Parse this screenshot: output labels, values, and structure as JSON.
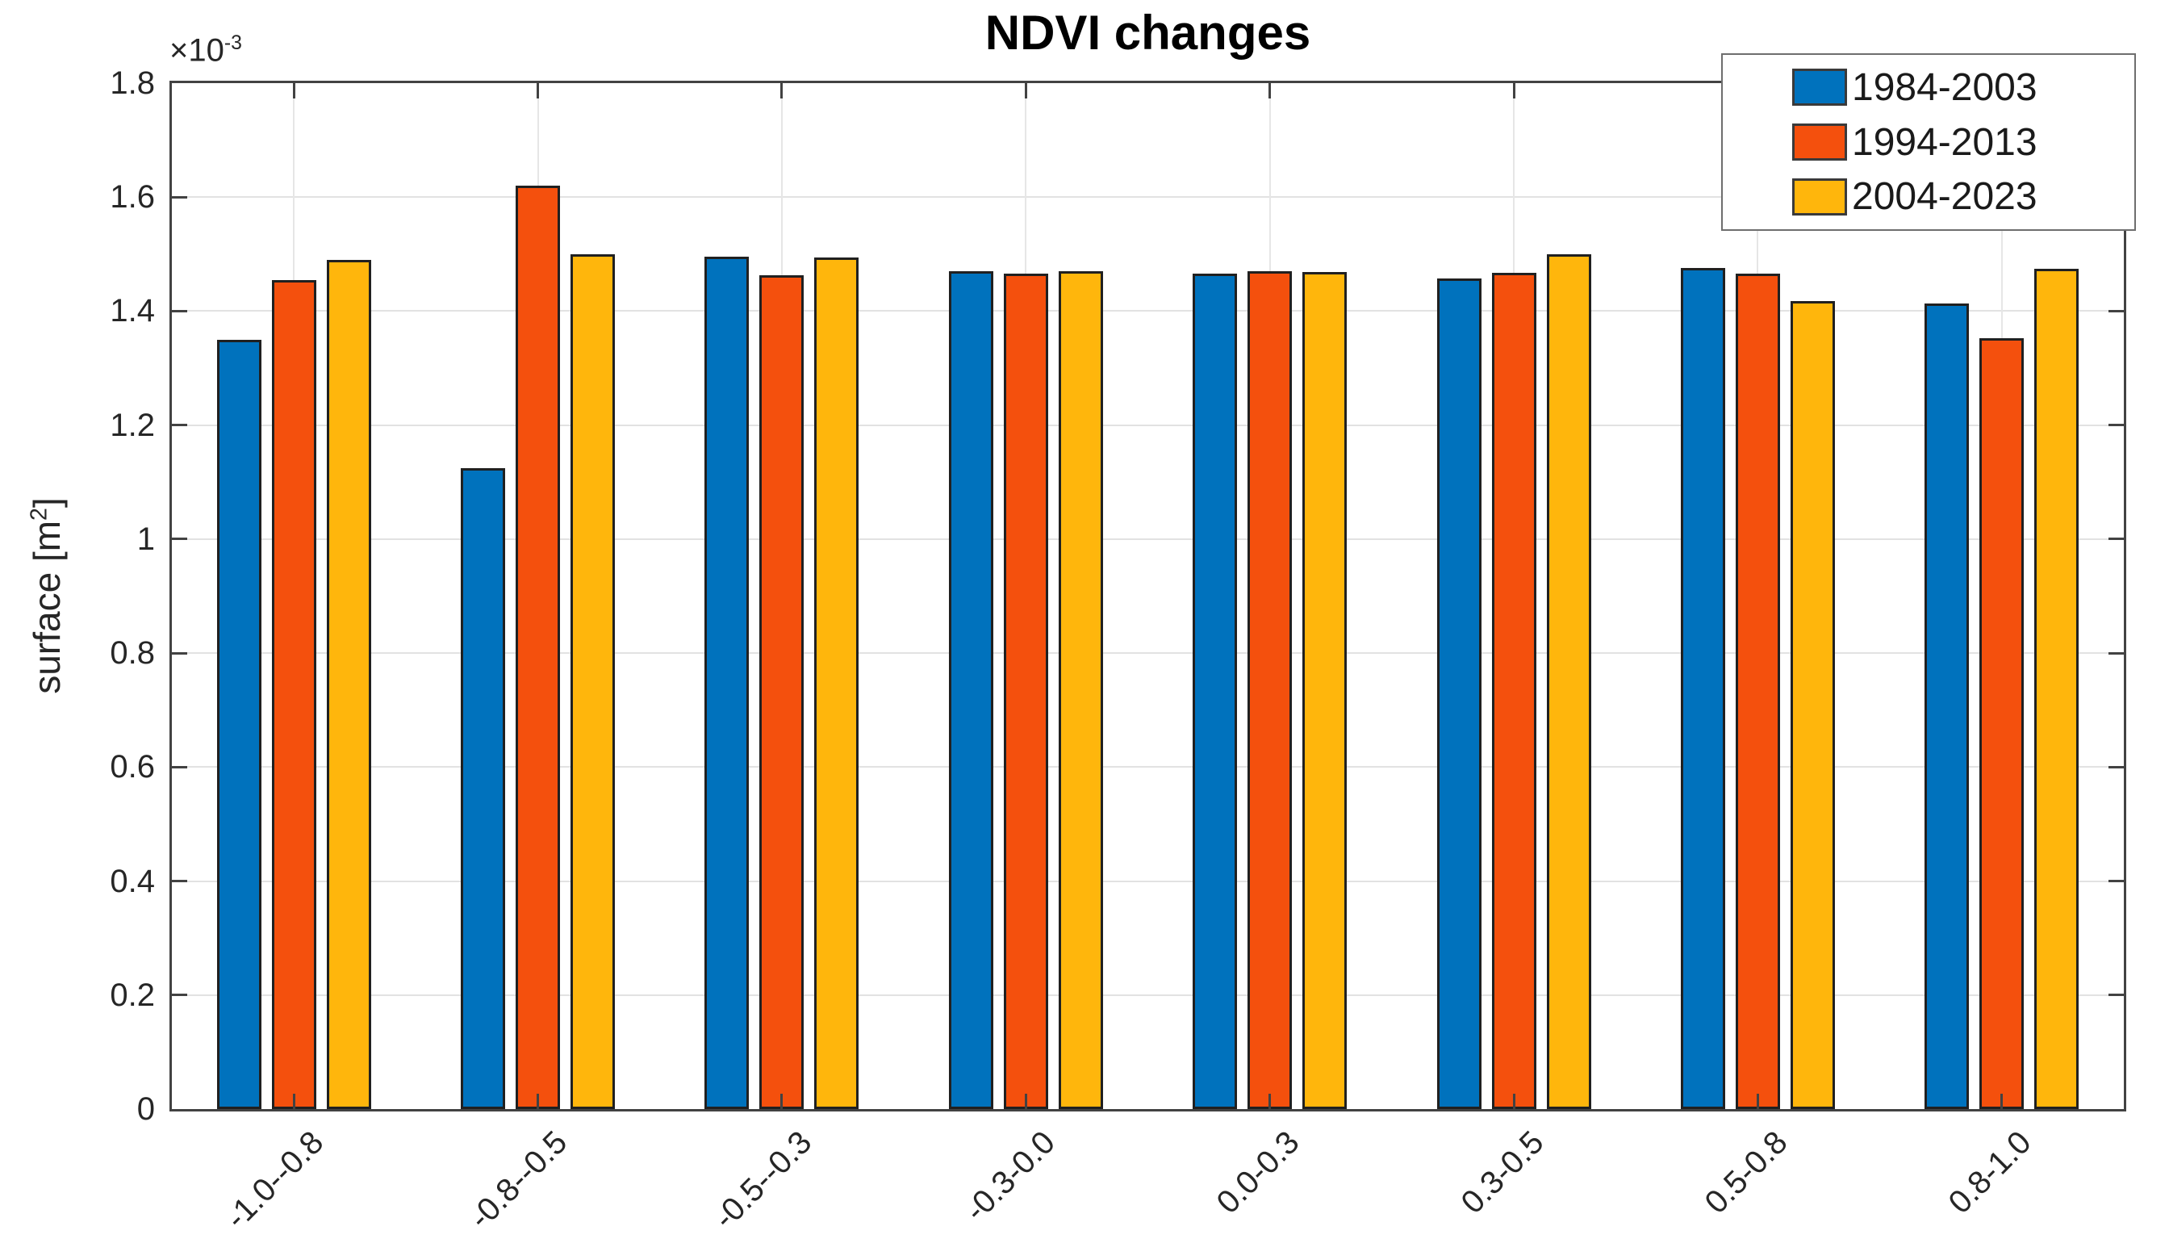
{
  "title": "NDVI changes",
  "axes": {
    "ylabel_prefix": "surface [m",
    "ylabel_sup": "2",
    "ylabel_suffix": "]",
    "multiplier_prefix": "×10",
    "multiplier_sup": "-3",
    "yticks": [
      {
        "value": 0,
        "label": "0"
      },
      {
        "value": 0.2,
        "label": "0.2"
      },
      {
        "value": 0.4,
        "label": "0.4"
      },
      {
        "value": 0.6,
        "label": "0.6"
      },
      {
        "value": 0.8,
        "label": "0.8"
      },
      {
        "value": 1,
        "label": "1"
      },
      {
        "value": 1.2,
        "label": "1.2"
      },
      {
        "value": 1.4,
        "label": "1.4"
      },
      {
        "value": 1.6,
        "label": "1.6"
      },
      {
        "value": 1.8,
        "label": "1.8"
      }
    ]
  },
  "chart_data": {
    "type": "bar",
    "title": "NDVI changes",
    "xlabel": "",
    "ylabel": "surface [m^2]",
    "y_scale_factor": 0.001,
    "y_multiplier_label": "×10^-3",
    "ylim_e3": [
      0,
      1.8
    ],
    "grid": true,
    "legend_position": "top-right",
    "categories": [
      "-1.0--0.8",
      "-0.8--0.5",
      "-0.5--0.3",
      "-0.3-0.0",
      "0.0-0.3",
      "0.3-0.5",
      "0.5-0.8",
      "0.8-1.0"
    ],
    "series": [
      {
        "name": "1984-2003",
        "color": "#0072BD",
        "values_e3": [
          1.35,
          1.125,
          1.496,
          1.47,
          1.466,
          1.457,
          1.476,
          1.414
        ]
      },
      {
        "name": "1994-2013",
        "color": "#F4500D",
        "values_e3": [
          1.455,
          1.62,
          1.463,
          1.466,
          1.47,
          1.467,
          1.466,
          1.352
        ]
      },
      {
        "name": "2004-2023",
        "color": "#FFB60C",
        "values_e3": [
          1.49,
          1.5,
          1.494,
          1.47,
          1.469,
          1.5,
          1.417,
          1.475
        ]
      }
    ]
  }
}
